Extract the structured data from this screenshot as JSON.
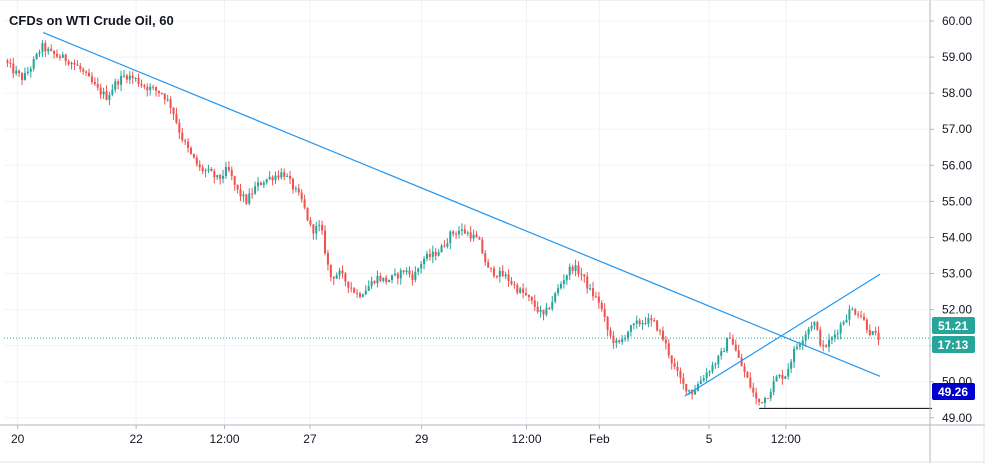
{
  "title": "CFDs on WTI Crude Oil, 60",
  "colors": {
    "up": "#26a69a",
    "down": "#ef5350",
    "trendline": "#2196f3",
    "grid": "#f0f3fa",
    "axis_text": "#131722",
    "price_badge": "#26a69a",
    "low_badge": "#0000cc",
    "level_line": "#000000"
  },
  "price_label": {
    "value": "51.21",
    "countdown": "17:13"
  },
  "low_label": {
    "value": "49.26"
  },
  "chart_data": {
    "type": "candlestick",
    "title": "CFDs on WTI Crude Oil, 60",
    "ylim": [
      48.8,
      60.5
    ],
    "y_ticks": [
      "60.00",
      "59.00",
      "58.00",
      "57.00",
      "56.00",
      "55.00",
      "54.00",
      "53.00",
      "52.00",
      "51.00",
      "50.00",
      "49.00"
    ],
    "x_ticks": [
      "20",
      "22",
      "12:00",
      "27",
      "29",
      "12:00",
      "Feb",
      "5",
      "12:00"
    ],
    "grid": true,
    "price_path": [
      [
        0,
        58.9
      ],
      [
        1,
        58.6
      ],
      [
        2,
        58.4
      ],
      [
        3,
        58.8
      ],
      [
        4,
        59.3
      ],
      [
        5,
        59.1
      ],
      [
        6,
        59.0
      ],
      [
        7,
        58.9
      ],
      [
        8,
        58.7
      ],
      [
        9,
        58.4
      ],
      [
        10,
        58.1
      ],
      [
        11,
        57.9
      ],
      [
        12,
        58.3
      ],
      [
        13,
        58.5
      ],
      [
        14,
        58.4
      ],
      [
        15,
        58.2
      ],
      [
        16,
        58.1
      ],
      [
        17,
        58.0
      ],
      [
        18,
        57.6
      ],
      [
        19,
        56.8
      ],
      [
        20,
        56.3
      ],
      [
        21,
        55.9
      ],
      [
        22,
        55.8
      ],
      [
        23,
        55.6
      ],
      [
        24,
        55.9
      ],
      [
        25,
        55.3
      ],
      [
        26,
        55.0
      ],
      [
        27,
        55.4
      ],
      [
        28,
        55.6
      ],
      [
        29,
        55.7
      ],
      [
        30,
        55.8
      ],
      [
        31,
        55.4
      ],
      [
        32,
        55.0
      ],
      [
        33,
        54.2
      ],
      [
        34,
        54.3
      ],
      [
        35,
        52.9
      ],
      [
        36,
        53.0
      ],
      [
        37,
        52.7
      ],
      [
        38,
        52.4
      ],
      [
        39,
        52.6
      ],
      [
        40,
        52.9
      ],
      [
        41,
        52.8
      ],
      [
        42,
        52.9
      ],
      [
        43,
        53.1
      ],
      [
        44,
        52.9
      ],
      [
        45,
        53.4
      ],
      [
        46,
        53.5
      ],
      [
        47,
        53.7
      ],
      [
        48,
        54.1
      ],
      [
        49,
        54.2
      ],
      [
        50,
        54.1
      ],
      [
        51,
        53.9
      ],
      [
        52,
        53.1
      ],
      [
        53,
        53.0
      ],
      [
        54,
        52.9
      ],
      [
        55,
        52.6
      ],
      [
        56,
        52.4
      ],
      [
        57,
        52.1
      ],
      [
        58,
        51.8
      ],
      [
        59,
        52.3
      ],
      [
        60,
        52.8
      ],
      [
        61,
        53.2
      ],
      [
        62,
        53.0
      ],
      [
        63,
        52.5
      ],
      [
        64,
        52.2
      ],
      [
        65,
        51.3
      ],
      [
        66,
        51.0
      ],
      [
        67,
        51.4
      ],
      [
        68,
        51.6
      ],
      [
        69,
        51.7
      ],
      [
        70,
        51.6
      ],
      [
        71,
        51.1
      ],
      [
        72,
        50.4
      ],
      [
        73,
        49.9
      ],
      [
        74,
        49.7
      ],
      [
        75,
        50.1
      ],
      [
        76,
        50.4
      ],
      [
        77,
        50.7
      ],
      [
        78,
        51.3
      ],
      [
        79,
        50.6
      ],
      [
        80,
        50.0
      ],
      [
        81,
        49.4
      ],
      [
        82,
        49.6
      ],
      [
        83,
        50.1
      ],
      [
        84,
        50.2
      ],
      [
        85,
        50.9
      ],
      [
        86,
        51.3
      ],
      [
        87,
        51.7
      ],
      [
        88,
        50.9
      ],
      [
        89,
        51.2
      ],
      [
        90,
        51.6
      ],
      [
        91,
        52.0
      ],
      [
        92,
        51.9
      ],
      [
        93,
        51.4
      ],
      [
        94,
        51.21
      ]
    ],
    "trendlines": [
      {
        "from": [
          4,
          59.68
        ],
        "to": [
          94,
          50.15
        ]
      },
      {
        "from": [
          73,
          49.6
        ],
        "to": [
          94,
          52.98
        ]
      }
    ],
    "level_line": {
      "from": [
        81,
        49.26
      ],
      "value": 49.26
    },
    "last_price": 51.21
  }
}
